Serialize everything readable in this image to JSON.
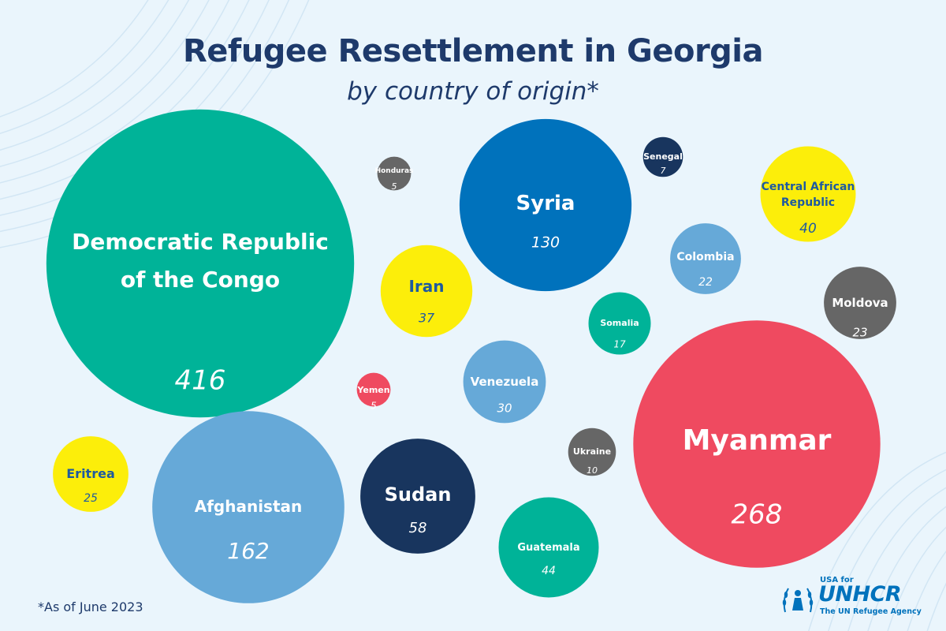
{
  "title": "Refugee Resettlement in Georgia",
  "subtitle": "by country of origin*",
  "footnote": "*As of June 2023",
  "logo": {
    "small": "USA for",
    "main": "UNHCR",
    "tagline": "The UN Refugee Agency",
    "icon": "unhcr-emblem-icon"
  },
  "colors": {
    "background": "#eaf5fc",
    "heading": "#1e3a6b",
    "teal": "#00b398",
    "blue": "#0072bc",
    "light_blue": "#66a9d8",
    "yellow": "#fcee0a",
    "red": "#ef4a60",
    "navy": "#18355e",
    "gray": "#666666"
  },
  "chart_data": {
    "type": "bubble",
    "title": "Refugee Resettlement in Georgia",
    "subtitle": "by country of origin*",
    "series": [
      {
        "label": "Democratic Republic of the Congo",
        "value": 416,
        "color": "#00b398",
        "text_color": "#ffffff"
      },
      {
        "label": "Myanmar",
        "value": 268,
        "color": "#ef4a60",
        "text_color": "#ffffff"
      },
      {
        "label": "Afghanistan",
        "value": 162,
        "color": "#66a9d8",
        "text_color": "#ffffff"
      },
      {
        "label": "Syria",
        "value": 130,
        "color": "#0072bc",
        "text_color": "#ffffff"
      },
      {
        "label": "Sudan",
        "value": 58,
        "color": "#18355e",
        "text_color": "#ffffff"
      },
      {
        "label": "Guatemala",
        "value": 44,
        "color": "#00b398",
        "text_color": "#ffffff"
      },
      {
        "label": "Central African Republic",
        "value": 40,
        "color": "#fcee0a",
        "text_color": "#1e5aa0"
      },
      {
        "label": "Iran",
        "value": 37,
        "color": "#fcee0a",
        "text_color": "#1e5aa0"
      },
      {
        "label": "Venezuela",
        "value": 30,
        "color": "#66a9d8",
        "text_color": "#ffffff"
      },
      {
        "label": "Eritrea",
        "value": 25,
        "color": "#fcee0a",
        "text_color": "#1e5aa0"
      },
      {
        "label": "Moldova",
        "value": 23,
        "color": "#666666",
        "text_color": "#ffffff"
      },
      {
        "label": "Colombia",
        "value": 22,
        "color": "#66a9d8",
        "text_color": "#ffffff"
      },
      {
        "label": "Somalia",
        "value": 17,
        "color": "#00b398",
        "text_color": "#ffffff"
      },
      {
        "label": "Ukraine",
        "value": 10,
        "color": "#666666",
        "text_color": "#ffffff"
      },
      {
        "label": "Senegal",
        "value": 7,
        "color": "#18355e",
        "text_color": "#ffffff"
      },
      {
        "label": "Honduras",
        "value": 5,
        "color": "#666666",
        "text_color": "#ffffff"
      },
      {
        "label": "Yemen",
        "value": 5,
        "color": "#ef4a60",
        "text_color": "#ffffff"
      }
    ]
  }
}
